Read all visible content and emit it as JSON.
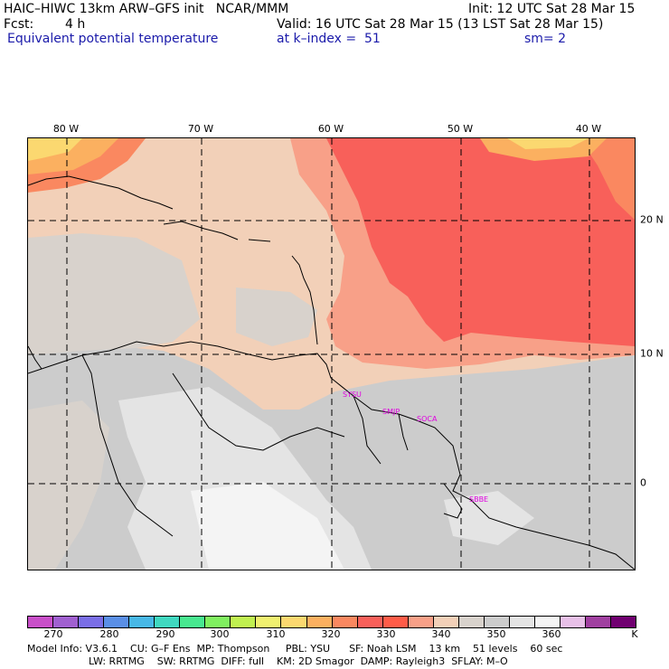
{
  "header": {
    "model_line": "HAIC–HIWC 13km ARW–GFS init   NCAR/MMM",
    "init_line": "Init: 12 UTC Sat 28 Mar 15",
    "fcst_label": "Fcst:",
    "fcst_value": "4 h",
    "valid_line": "Valid: 16 UTC Sat 28 Mar 15 (13 LST Sat 28 Mar 15)",
    "field_name": "Equivalent potential temperature",
    "level_line": "at k–index =  51",
    "smooth_line": "sm= 2"
  },
  "map": {
    "lon_labels": [
      "80 W",
      "70 W",
      "60 W",
      "50 W",
      "40 W"
    ],
    "lat_labels": [
      "20 N",
      "10 N",
      "0"
    ],
    "stations": [
      "SYSU",
      "SMJP",
      "SOCA",
      "SBBE"
    ]
  },
  "colorbar": {
    "colors": [
      "#c84fc8",
      "#a060d0",
      "#7a6ee6",
      "#5a8fe6",
      "#48b8e6",
      "#40d8c0",
      "#48e890",
      "#80f060",
      "#c0f050",
      "#f0f070",
      "#fbd870",
      "#fbb060",
      "#fa8860",
      "#f8605a",
      "#ff5c48",
      "#f8a088",
      "#f2d0b8",
      "#d8d2cc",
      "#cccccc",
      "#e4e4e4",
      "#f4f4f4",
      "#e8c0e8",
      "#a040a0",
      "#700070"
    ],
    "tick_labels": [
      "270",
      "280",
      "290",
      "300",
      "310",
      "320",
      "330",
      "340",
      "350",
      "360",
      "K"
    ]
  },
  "footer": {
    "line1": "Model Info: V3.6.1    CU: G–F Ens  MP: Thompson     PBL: YSU      SF: Noah LSM    13 km    51 levels    60 sec",
    "line2": "LW: RRTMG    SW: RRTMG  DIFF: full    KM: 2D Smagor  DAMP: Rayleigh3  SFLAY: M–O"
  }
}
